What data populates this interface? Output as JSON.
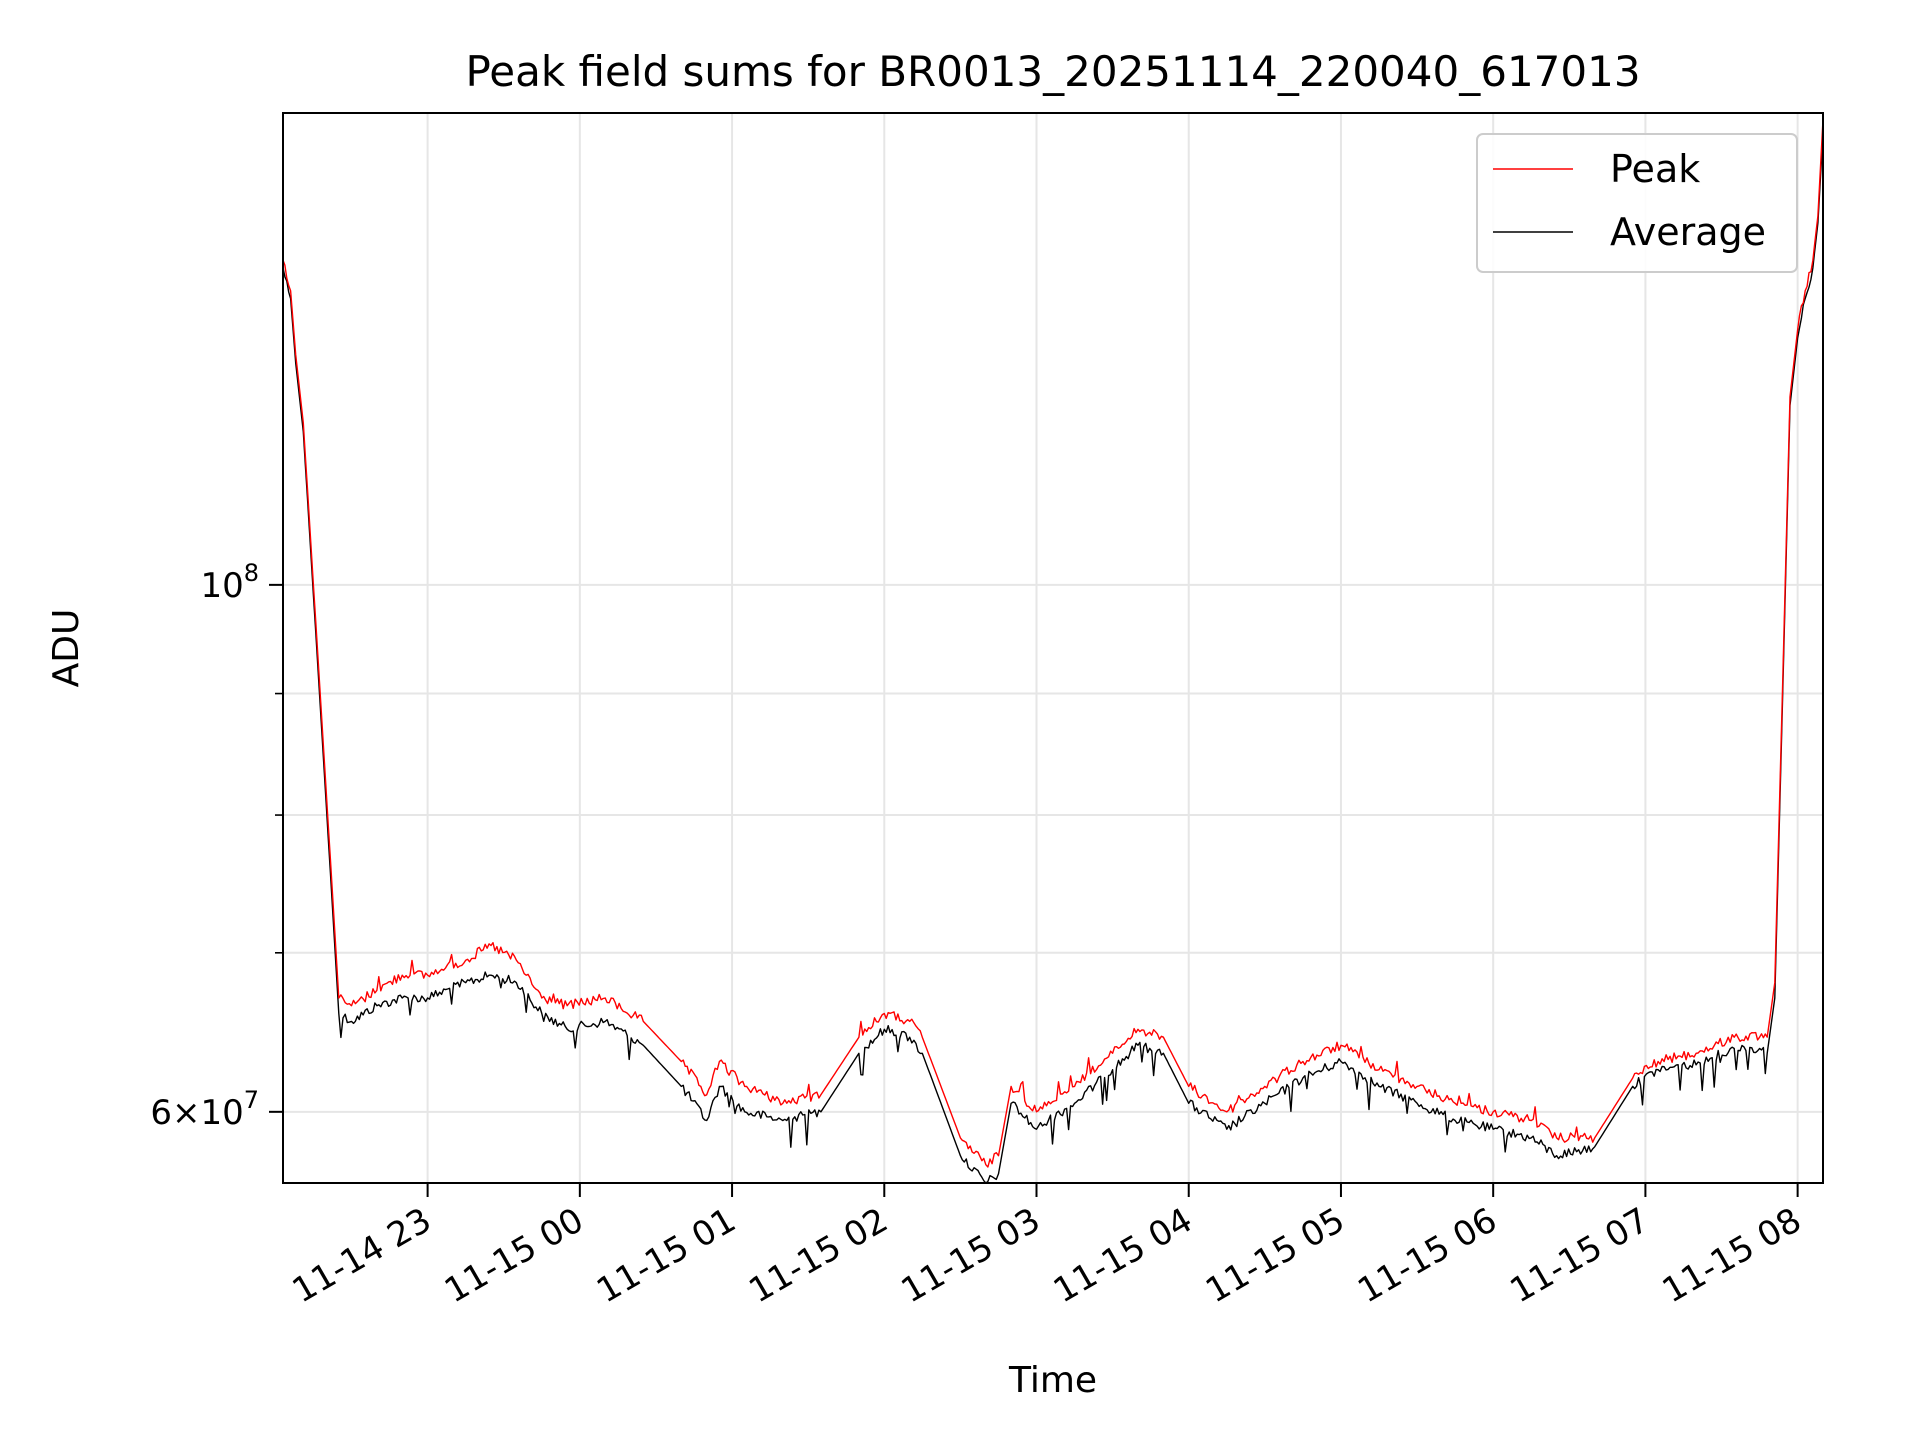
{
  "chart_data": {
    "type": "line",
    "title": "Peak field sums for BR0013_20251114_220040_617013",
    "xlabel": "Time",
    "ylabel": "ADU",
    "yscale": "log",
    "grid": true,
    "legend_position": "upper-right",
    "xlim": [
      "2025-11-14 22:03",
      "2025-11-15 08:10"
    ],
    "ylim": [
      56000000,
      158000000
    ],
    "x_ticks": [
      {
        "value": "2025-11-14 23:00",
        "label": "11-14 23"
      },
      {
        "value": "2025-11-15 00:00",
        "label": "11-15 00"
      },
      {
        "value": "2025-11-15 01:00",
        "label": "11-15 01"
      },
      {
        "value": "2025-11-15 02:00",
        "label": "11-15 02"
      },
      {
        "value": "2025-11-15 03:00",
        "label": "11-15 03"
      },
      {
        "value": "2025-11-15 04:00",
        "label": "11-15 04"
      },
      {
        "value": "2025-11-15 05:00",
        "label": "11-15 05"
      },
      {
        "value": "2025-11-15 06:00",
        "label": "11-15 06"
      },
      {
        "value": "2025-11-15 07:00",
        "label": "11-15 07"
      },
      {
        "value": "2025-11-15 08:00",
        "label": "11-15 08"
      }
    ],
    "y_major_ticks": [
      {
        "value": 60000000,
        "mantissa": "6",
        "exponent": "7"
      },
      {
        "value": 100000000,
        "mantissa": "",
        "exponent": "8"
      }
    ],
    "y_minor_ticks": [
      70000000,
      80000000,
      90000000
    ],
    "x": [
      "2025-11-14 22:03",
      "2025-11-14 22:06",
      "2025-11-14 22:08",
      "2025-11-14 22:11",
      "2025-11-14 22:15",
      "2025-11-14 22:20",
      "2025-11-14 22:25",
      "2025-11-14 22:30",
      "2025-11-14 22:40",
      "2025-11-14 22:50",
      "2025-11-14 23:00",
      "2025-11-14 23:15",
      "2025-11-14 23:25",
      "2025-11-14 23:35",
      "2025-11-14 23:45",
      "2025-11-14 23:55",
      "2025-11-15 00:10",
      "2025-11-15 00:25",
      "2025-11-15 00:40",
      "2025-11-15 00:50",
      "2025-11-15 00:55",
      "2025-11-15 01:05",
      "2025-11-15 01:20",
      "2025-11-15 01:35",
      "2025-11-15 01:50",
      "2025-11-15 02:00",
      "2025-11-15 02:10",
      "2025-11-15 02:15",
      "2025-11-15 02:30",
      "2025-11-15 02:40",
      "2025-11-15 02:45",
      "2025-11-15 02:50",
      "2025-11-15 03:00",
      "2025-11-15 03:15",
      "2025-11-15 03:30",
      "2025-11-15 03:40",
      "2025-11-15 03:50",
      "2025-11-15 04:00",
      "2025-11-15 04:15",
      "2025-11-15 04:30",
      "2025-11-15 04:45",
      "2025-11-15 05:00",
      "2025-11-15 05:15",
      "2025-11-15 05:30",
      "2025-11-15 05:45",
      "2025-11-15 06:00",
      "2025-11-15 06:15",
      "2025-11-15 06:25",
      "2025-11-15 06:40",
      "2025-11-15 06:55",
      "2025-11-15 07:05",
      "2025-11-15 07:20",
      "2025-11-15 07:35",
      "2025-11-15 07:45",
      "2025-11-15 07:48",
      "2025-11-15 07:51",
      "2025-11-15 07:54",
      "2025-11-15 07:57",
      "2025-11-15 08:00",
      "2025-11-15 08:03",
      "2025-11-15 08:06",
      "2025-11-15 08:08",
      "2025-11-15 08:10"
    ],
    "series": [
      {
        "name": "Peak",
        "color": "#ff0000",
        "values": [
          137000000,
          133000000,
          125000000,
          117000000,
          100000000,
          82000000,
          67000000,
          66500000,
          67500000,
          68500000,
          68500000,
          69500000,
          70500000,
          69500000,
          67000000,
          66500000,
          67000000,
          65500000,
          63000000,
          61000000,
          63000000,
          61500000,
          60500000,
          61000000,
          64500000,
          66000000,
          65500000,
          64500000,
          58500000,
          57000000,
          57500000,
          61500000,
          60000000,
          61500000,
          63500000,
          65000000,
          64500000,
          61500000,
          60000000,
          61500000,
          63000000,
          64000000,
          62500000,
          61500000,
          60500000,
          60000000,
          59500000,
          58500000,
          58500000,
          62000000,
          63000000,
          63500000,
          64500000,
          64500000,
          64500000,
          68000000,
          90000000,
          120000000,
          128000000,
          133000000,
          137000000,
          143000000,
          157000000
        ]
      },
      {
        "name": "Average",
        "color": "#000000",
        "values": [
          136000000,
          132000000,
          124000000,
          116000000,
          99000000,
          81000000,
          66000000,
          65500000,
          66500000,
          67000000,
          67000000,
          68000000,
          68500000,
          68000000,
          66000000,
          65000000,
          65500000,
          64000000,
          61500000,
          59500000,
          61500000,
          60000000,
          59500000,
          60000000,
          63500000,
          65000000,
          64500000,
          63500000,
          57500000,
          56000000,
          56500000,
          60500000,
          59000000,
          60500000,
          62500000,
          64000000,
          63500000,
          60500000,
          59000000,
          60500000,
          62000000,
          63000000,
          61500000,
          60500000,
          59500000,
          59000000,
          58500000,
          57500000,
          58000000,
          61500000,
          62500000,
          62800000,
          63800000,
          63800000,
          63500000,
          67000000,
          89000000,
          119000000,
          127000000,
          132000000,
          136000000,
          142000000,
          155000000
        ]
      }
    ]
  }
}
